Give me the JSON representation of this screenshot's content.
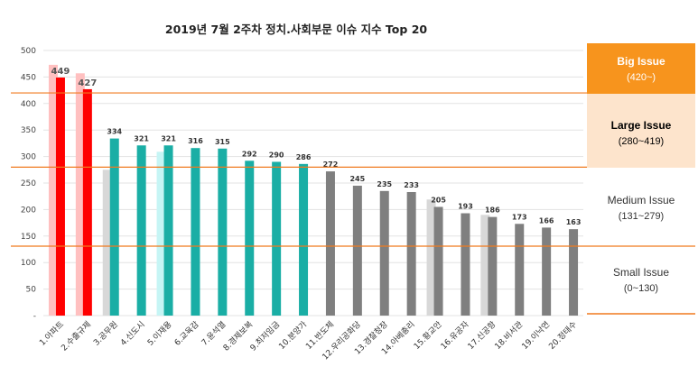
{
  "chart_data": {
    "type": "bar",
    "title": "2019년 7월 2주차 정치.사회부문 이슈 지수 Top 20",
    "ylim": [
      0,
      500
    ],
    "yticks": [
      "-",
      "50",
      "100",
      "150",
      "200",
      "250",
      "300",
      "350",
      "400",
      "450",
      "500"
    ],
    "grid": true,
    "categories": [
      "1.아파트",
      "2.수출규제",
      "3.공무원",
      "4.신도시",
      "5.이재용",
      "6.교육감",
      "7.윤석열",
      "8.경제보복",
      "9.최저임금",
      "10.분양가",
      "11.반도체",
      "12.우리공화당",
      "13.경찰청장",
      "14.아베총리",
      "15.황교안",
      "16.유공자",
      "17.신공항",
      "18.비서관",
      "19.이낙연",
      "20.정태수"
    ],
    "series": [
      {
        "values": [
          473,
          457,
          275,
          null,
          309,
          null,
          null,
          null,
          null,
          null,
          null,
          null,
          null,
          null,
          219,
          null,
          190,
          null,
          null,
          null
        ],
        "colors": [
          "#ffc0c0",
          "#ffc0c0",
          "#d8d8d8",
          null,
          "#c6f5f5",
          null,
          null,
          null,
          null,
          null,
          null,
          null,
          null,
          null,
          "#d8d8d8",
          null,
          "#d8d8d8",
          null,
          null,
          null
        ]
      },
      {
        "values": [
          449,
          427,
          334,
          321,
          321,
          316,
          315,
          292,
          290,
          286,
          272,
          245,
          235,
          233,
          205,
          193,
          186,
          173,
          166,
          163
        ],
        "colors": [
          "#ff0000",
          "#ff0000",
          "#1aaea5",
          "#1aaea5",
          "#1aaea5",
          "#1aaea5",
          "#1aaea5",
          "#1aaea5",
          "#1aaea5",
          "#1aaea5",
          "#7f7f7f",
          "#7f7f7f",
          "#7f7f7f",
          "#7f7f7f",
          "#7f7f7f",
          "#7f7f7f",
          "#7f7f7f",
          "#7f7f7f",
          "#7f7f7f",
          "#7f7f7f"
        ]
      }
    ],
    "threshold_lines": [
      420,
      280,
      131
    ],
    "threshold_color": "#f07a1f"
  },
  "legend": {
    "big": {
      "line1": "Big Issue",
      "line2": "(420~)",
      "color": "#f7941d",
      "text_color": "#ffffff"
    },
    "large": {
      "line1": "Large Issue",
      "line2": "(280~419)",
      "color": "#fde4cc",
      "text_color": "#000000"
    },
    "medium": {
      "line1": "Medium Issue",
      "line2": "(131~279)",
      "text_color": "#333333"
    },
    "small": {
      "line1": "Small Issue",
      "line2": "(0~130)",
      "text_color": "#333333"
    }
  }
}
